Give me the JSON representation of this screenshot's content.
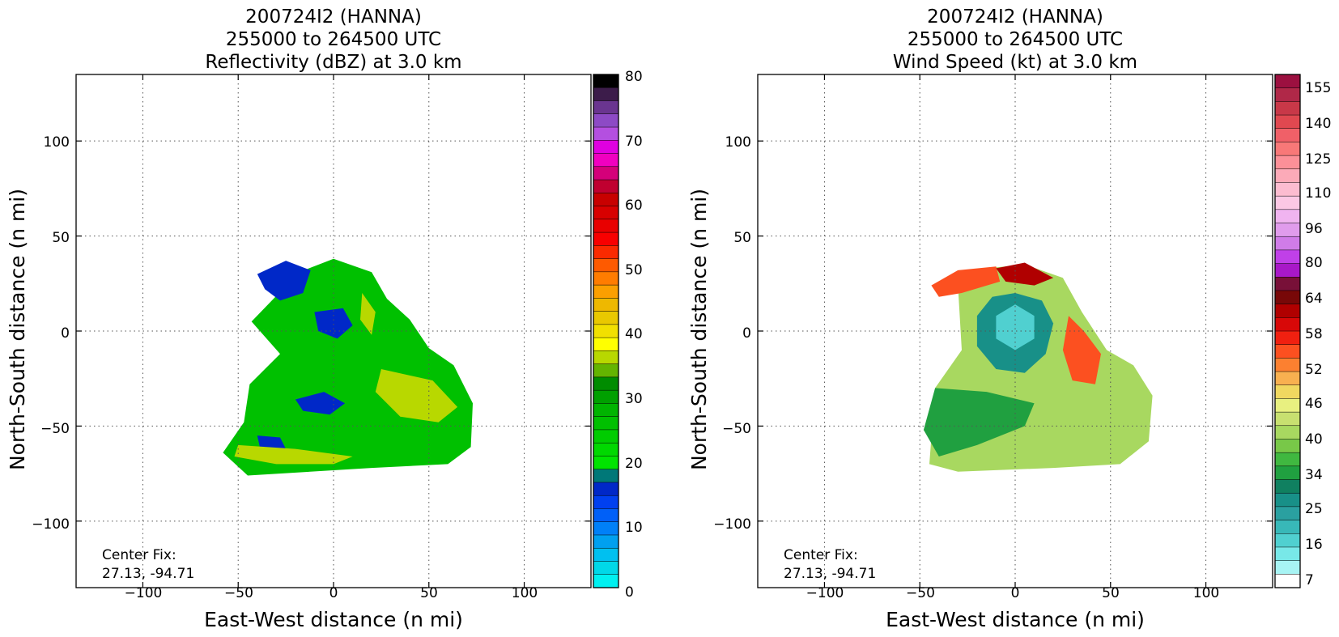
{
  "panels": [
    {
      "id": "reflectivity",
      "title_lines": [
        "200724I2 (HANNA)",
        "255000 to 264500 UTC",
        "Reflectivity (dBZ) at 3.0 km"
      ],
      "xlabel": "East-West distance (n mi)",
      "ylabel": "North-South distance (n mi)",
      "x_ticks": [
        "−100",
        "−50",
        "0",
        "50",
        "100"
      ],
      "y_ticks": [
        "100",
        "50",
        "0",
        "−50",
        "−100"
      ],
      "center_fix_label": "Center Fix:",
      "center_fix_coords": "27.13, -94.71",
      "colorbar": {
        "labels": [
          "80",
          "70",
          "60",
          "50",
          "40",
          "30",
          "20",
          "10",
          "0"
        ],
        "colors": [
          "#000000",
          "#3c1c4a",
          "#6a3590",
          "#8d4ac5",
          "#b44fe0",
          "#e000e0",
          "#f000c0",
          "#d4007a",
          "#c00030",
          "#c80000",
          "#d80000",
          "#e80000",
          "#f80000",
          "#fa2a00",
          "#fe5a00",
          "#ff7c00",
          "#fb9f00",
          "#eeb800",
          "#e9c800",
          "#f1e000",
          "#ffff00",
          "#b8d800",
          "#64b400",
          "#008c00",
          "#00a000",
          "#00b400",
          "#00c000",
          "#00cc00",
          "#00d800",
          "#00e400",
          "#007878",
          "#0028c8",
          "#0040f0",
          "#0060f8",
          "#0080f8",
          "#00a0f0",
          "#00c0f0",
          "#00d8e8",
          "#00f0f0"
        ]
      }
    },
    {
      "id": "wind-speed",
      "title_lines": [
        "200724I2 (HANNA)",
        "255000 to 264500 UTC",
        "Wind Speed (kt) at 3.0 km"
      ],
      "xlabel": "East-West distance (n mi)",
      "ylabel": "North-South distance (n mi)",
      "x_ticks": [
        "−100",
        "−50",
        "0",
        "50",
        "100"
      ],
      "y_ticks": [
        "100",
        "50",
        "0",
        "−50",
        "−100"
      ],
      "center_fix_label": "Center Fix:",
      "center_fix_coords": "27.13, -94.71",
      "colorbar": {
        "labels": [
          "155",
          "140",
          "125",
          "110",
          "96",
          "80",
          "64",
          "58",
          "52",
          "46",
          "40",
          "34",
          "25",
          "16",
          "7"
        ],
        "colors": [
          "#9c1040",
          "#b02848",
          "#c83848",
          "#e04850",
          "#f06068",
          "#f87878",
          "#fc9098",
          "#fcaab8",
          "#fcbcd0",
          "#fcc8e4",
          "#f0b4f0",
          "#e09cec",
          "#d07ce8",
          "#c040e8",
          "#a818c8",
          "#781038",
          "#780808",
          "#b00000",
          "#d80808",
          "#f02010",
          "#fc5020",
          "#fc8030",
          "#f8b050",
          "#f0d860",
          "#e8f080",
          "#c8e070",
          "#a8d860",
          "#78c848",
          "#40b840",
          "#20a040",
          "#108060",
          "#189088",
          "#2aa0a0",
          "#38b8b8",
          "#50d0d0",
          "#78e8e8",
          "#a8f4f4",
          "#ffffff"
        ]
      }
    }
  ],
  "chart_data": [
    {
      "type": "heatmap",
      "title": "200724I2 (HANNA) 255000 to 264500 UTC Reflectivity (dBZ) at 3.0 km",
      "xlabel": "East-West distance (n mi)",
      "ylabel": "North-South distance (n mi)",
      "xlim": [
        -135,
        135
      ],
      "ylim": [
        -135,
        135
      ],
      "x_ticks": [
        -100,
        -50,
        0,
        50,
        100
      ],
      "y_ticks": [
        -100,
        -50,
        0,
        50,
        100
      ],
      "grid": true,
      "grid_style": "dotted",
      "colorbar_range": [
        0,
        80
      ],
      "colorbar_ticks": [
        0,
        10,
        20,
        30,
        40,
        50,
        60,
        70,
        80
      ],
      "center_fix": [
        27.13,
        -94.71
      ],
      "echo_zones": [
        {
          "value_dbz": 25,
          "polygon": [
            [
              -43,
              5
            ],
            [
              -18,
              31
            ],
            [
              0,
              38
            ],
            [
              20,
              31
            ],
            [
              28,
              17
            ],
            [
              40,
              6
            ],
            [
              50,
              -9
            ],
            [
              63,
              -18
            ],
            [
              73,
              -38
            ],
            [
              72,
              -61
            ],
            [
              60,
              -70
            ],
            [
              20,
              -72
            ],
            [
              -45,
              -76
            ],
            [
              -58,
              -64
            ],
            [
              -47,
              -48
            ],
            [
              -44,
              -28
            ],
            [
              -28,
              -12
            ]
          ]
        },
        {
          "value_dbz": 15,
          "polygon": [
            [
              -40,
              30
            ],
            [
              -25,
              37
            ],
            [
              -12,
              32
            ],
            [
              -16,
              20
            ],
            [
              -28,
              16
            ],
            [
              -36,
              22
            ]
          ]
        },
        {
          "value_dbz": 15,
          "polygon": [
            [
              -10,
              10
            ],
            [
              5,
              12
            ],
            [
              10,
              3
            ],
            [
              2,
              -4
            ],
            [
              -8,
              0
            ]
          ]
        },
        {
          "value_dbz": 15,
          "polygon": [
            [
              -20,
              -36
            ],
            [
              -5,
              -32
            ],
            [
              6,
              -38
            ],
            [
              -2,
              -44
            ],
            [
              -16,
              -42
            ]
          ]
        },
        {
          "value_dbz": 15,
          "polygon": [
            [
              -40,
              -55
            ],
            [
              -28,
              -56
            ],
            [
              -25,
              -62
            ],
            [
              -38,
              -64
            ]
          ]
        },
        {
          "value_dbz": 35,
          "polygon": [
            [
              15,
              20
            ],
            [
              22,
              10
            ],
            [
              20,
              -2
            ],
            [
              14,
              6
            ]
          ]
        },
        {
          "value_dbz": 35,
          "polygon": [
            [
              25,
              -20
            ],
            [
              52,
              -26
            ],
            [
              65,
              -40
            ],
            [
              55,
              -48
            ],
            [
              35,
              -45
            ],
            [
              22,
              -32
            ]
          ]
        },
        {
          "value_dbz": 35,
          "polygon": [
            [
              -50,
              -60
            ],
            [
              -20,
              -62
            ],
            [
              10,
              -66
            ],
            [
              0,
              -70
            ],
            [
              -30,
              -70
            ],
            [
              -52,
              -66
            ]
          ]
        }
      ]
    },
    {
      "type": "heatmap",
      "title": "200724I2 (HANNA) 255000 to 264500 UTC Wind Speed (kt) at 3.0 km",
      "xlabel": "East-West distance (n mi)",
      "ylabel": "North-South distance (n mi)",
      "xlim": [
        -135,
        135
      ],
      "ylim": [
        -135,
        135
      ],
      "x_ticks": [
        -100,
        -50,
        0,
        50,
        100
      ],
      "y_ticks": [
        -100,
        -50,
        0,
        50,
        100
      ],
      "grid": true,
      "grid_style": "dotted",
      "colorbar_ticks": [
        7,
        16,
        25,
        34,
        40,
        46,
        52,
        58,
        64,
        80,
        96,
        110,
        125,
        140,
        155
      ],
      "center_fix": [
        27.13,
        -94.71
      ],
      "wind_zones": [
        {
          "value_kt": 40,
          "polygon": [
            [
              -30,
              24
            ],
            [
              -15,
              33
            ],
            [
              5,
              35
            ],
            [
              25,
              28
            ],
            [
              35,
              10
            ],
            [
              48,
              -10
            ],
            [
              62,
              -18
            ],
            [
              72,
              -34
            ],
            [
              70,
              -58
            ],
            [
              55,
              -70
            ],
            [
              20,
              -72
            ],
            [
              -30,
              -74
            ],
            [
              -45,
              -70
            ],
            [
              -42,
              -30
            ],
            [
              -28,
              -10
            ]
          ]
        },
        {
          "value_kt": 52,
          "polygon": [
            [
              -44,
              24
            ],
            [
              -30,
              32
            ],
            [
              -10,
              34
            ],
            [
              -8,
              26
            ],
            [
              -28,
              20
            ],
            [
              -40,
              18
            ]
          ]
        },
        {
          "value_kt": 58,
          "polygon": [
            [
              -10,
              33
            ],
            [
              5,
              36
            ],
            [
              20,
              28
            ],
            [
              10,
              24
            ],
            [
              -5,
              26
            ]
          ]
        },
        {
          "value_kt": 52,
          "polygon": [
            [
              28,
              8
            ],
            [
              36,
              0
            ],
            [
              45,
              -12
            ],
            [
              42,
              -28
            ],
            [
              30,
              -26
            ],
            [
              25,
              -10
            ]
          ]
        },
        {
          "value_kt": 25,
          "polygon": [
            [
              -20,
              8
            ],
            [
              -12,
              18
            ],
            [
              0,
              20
            ],
            [
              14,
              16
            ],
            [
              20,
              4
            ],
            [
              16,
              -12
            ],
            [
              5,
              -22
            ],
            [
              -10,
              -20
            ],
            [
              -20,
              -8
            ]
          ]
        },
        {
          "value_kt": 16,
          "polygon": [
            [
              -10,
              8
            ],
            [
              0,
              14
            ],
            [
              10,
              8
            ],
            [
              10,
              -4
            ],
            [
              0,
              -10
            ],
            [
              -10,
              -4
            ]
          ]
        },
        {
          "value_kt": 34,
          "polygon": [
            [
              -42,
              -30
            ],
            [
              -15,
              -32
            ],
            [
              10,
              -38
            ],
            [
              5,
              -50
            ],
            [
              -20,
              -60
            ],
            [
              -40,
              -66
            ],
            [
              -48,
              -52
            ]
          ]
        }
      ]
    }
  ]
}
